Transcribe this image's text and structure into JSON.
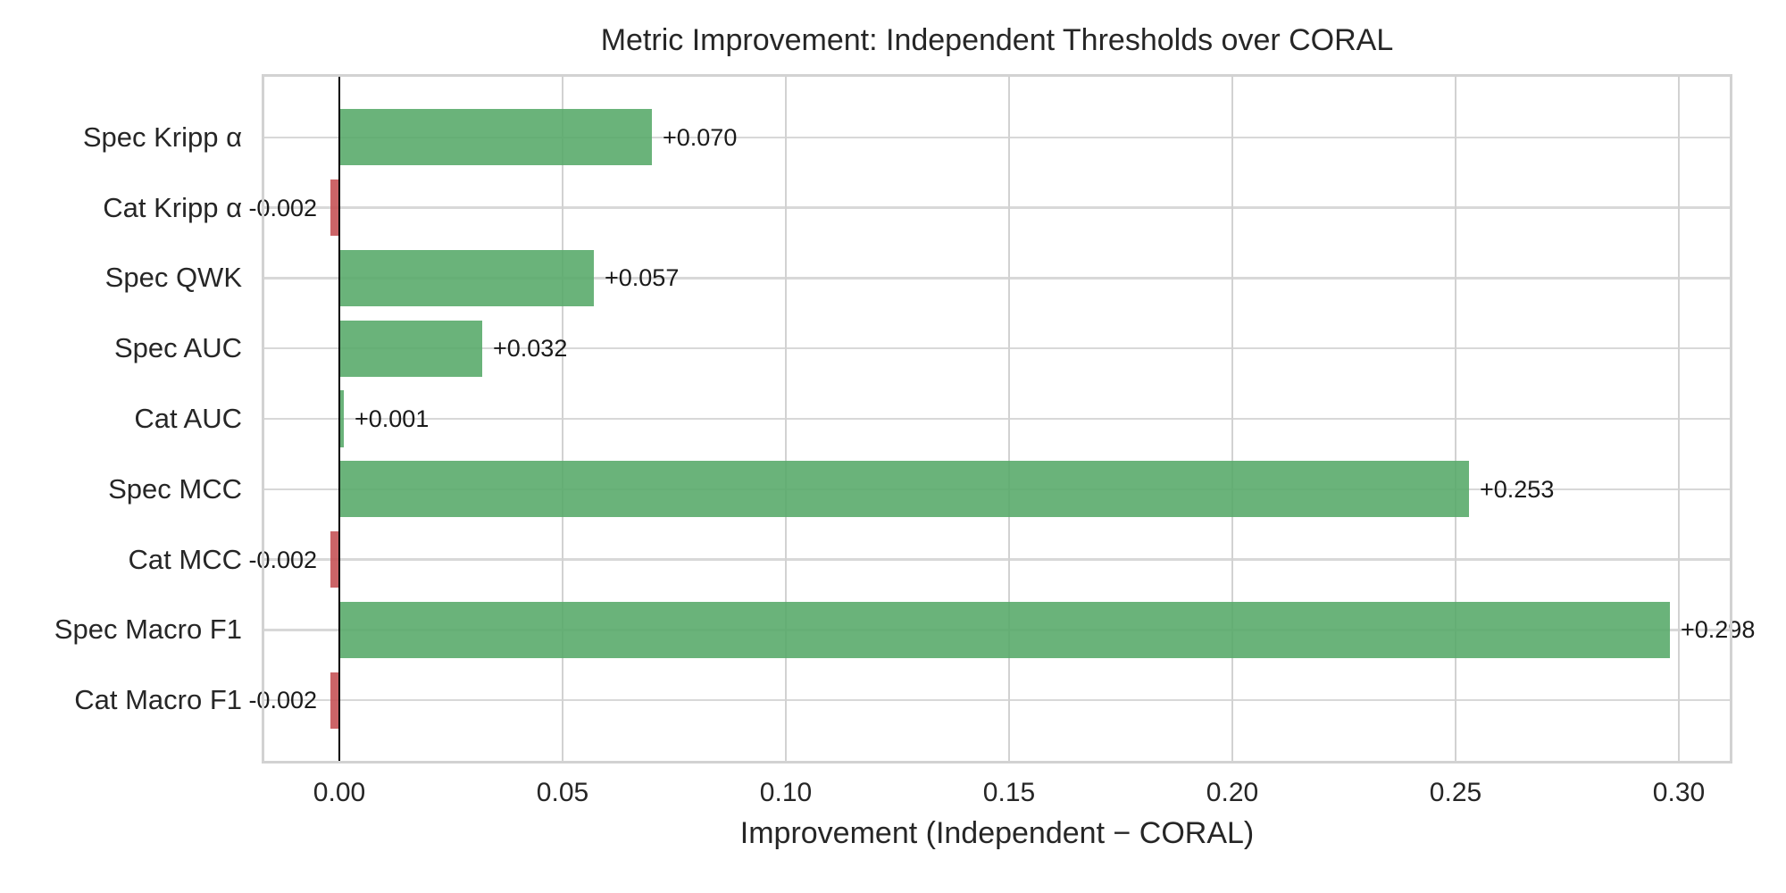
{
  "chart_data": {
    "type": "bar",
    "orientation": "horizontal",
    "title": "Metric Improvement: Independent Thresholds over CORAL",
    "xlabel": "Improvement (Independent − CORAL)",
    "ylabel": "",
    "categories": [
      "Spec Kripp α",
      "Cat Kripp α",
      "Spec QWK",
      "Spec AUC",
      "Cat AUC",
      "Spec MCC",
      "Cat MCC",
      "Spec Macro F1",
      "Cat Macro F1"
    ],
    "values": [
      0.07,
      -0.002,
      0.057,
      0.032,
      0.001,
      0.253,
      -0.002,
      0.298,
      -0.002
    ],
    "bar_labels": [
      "+0.070",
      "-0.002",
      "+0.057",
      "+0.032",
      "+0.001",
      "+0.253",
      "-0.002",
      "+0.298",
      "-0.002"
    ],
    "xticks": {
      "values": [
        0.0,
        0.05,
        0.1,
        0.15,
        0.2,
        0.25,
        0.3
      ],
      "labels": [
        "0.00",
        "0.05",
        "0.10",
        "0.15",
        "0.20",
        "0.25",
        "0.30"
      ]
    },
    "xlim": [
      -0.0174,
      0.312
    ],
    "grid": true,
    "zero_line": true,
    "legend": null,
    "colors": {
      "positive_bar": "#55a868",
      "negative_bar": "#c44e52",
      "bar_alpha": 0.88,
      "grid": "#d2d2d2",
      "zero_line": "#000000",
      "text": "#262626",
      "background": "#ffffff"
    }
  }
}
